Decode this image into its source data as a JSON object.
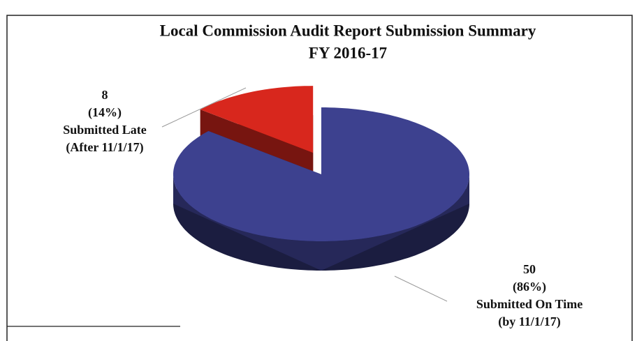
{
  "chart_data": {
    "type": "pie",
    "title": "Local Commission Audit Report Submission Summary",
    "subtitle": "FY 2016-17",
    "categories": [
      "Submitted On Time",
      "Submitted Late"
    ],
    "category_notes": [
      "(by 11/1/17)",
      "(After 11/1/17)"
    ],
    "values": [
      50,
      8
    ],
    "percent_labels": [
      "(86%)",
      "(14%)"
    ],
    "colors": [
      "#3d418f",
      "#d8271d"
    ],
    "exploded": [
      false,
      true
    ]
  }
}
